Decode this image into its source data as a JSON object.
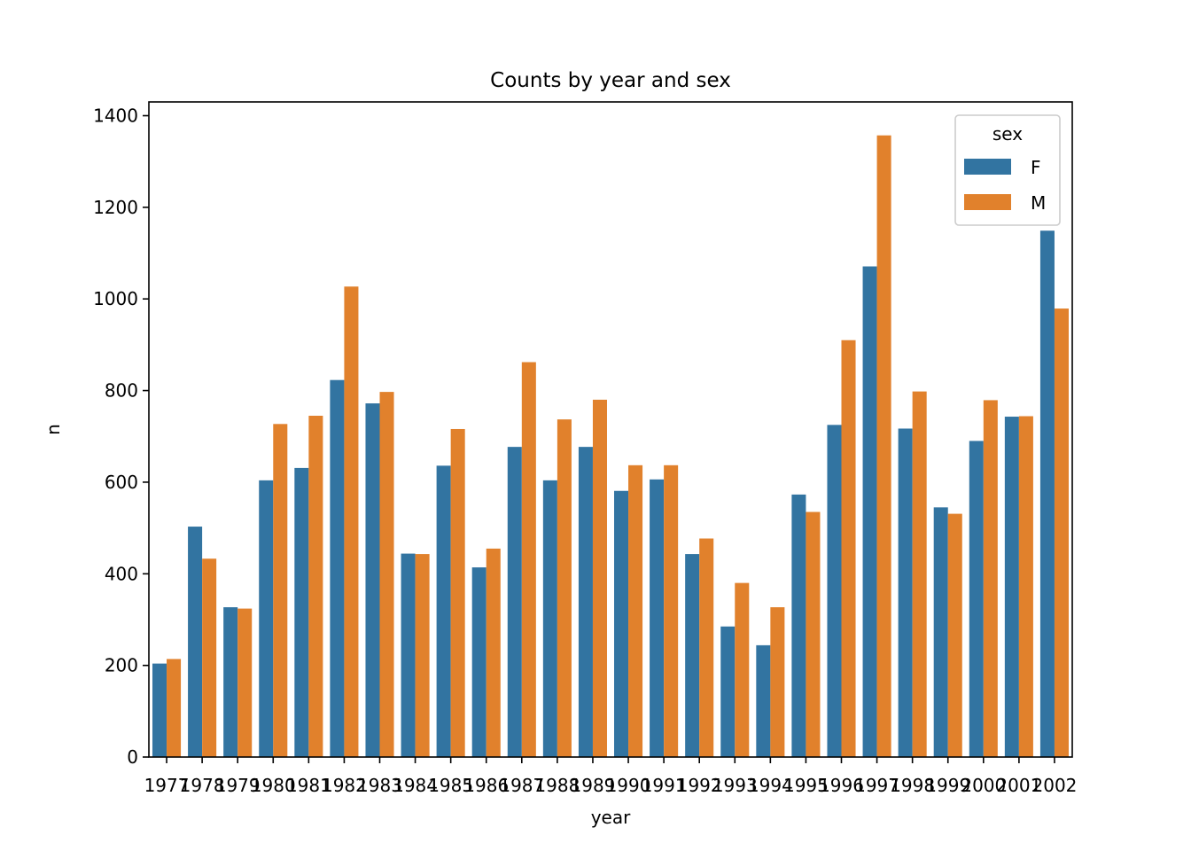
{
  "chart_data": {
    "type": "bar",
    "title": "Counts by year and sex",
    "xlabel": "year",
    "ylabel": "n",
    "ylim": [
      0,
      1430
    ],
    "yticks": [
      0,
      200,
      400,
      600,
      800,
      1000,
      1200,
      1400
    ],
    "grid": false,
    "legend": {
      "title": "sex",
      "position": "top-right"
    },
    "categories": [
      "1977",
      "1978",
      "1979",
      "1980",
      "1981",
      "1982",
      "1983",
      "1984",
      "1985",
      "1986",
      "1987",
      "1988",
      "1989",
      "1990",
      "1991",
      "1992",
      "1993",
      "1994",
      "1995",
      "1996",
      "1997",
      "1998",
      "1999",
      "2000",
      "2001",
      "2002"
    ],
    "series": [
      {
        "name": "F",
        "color": "#3274a1",
        "values": [
          204,
          503,
          327,
          604,
          631,
          823,
          772,
          444,
          636,
          414,
          677,
          604,
          677,
          581,
          606,
          443,
          285,
          244,
          573,
          725,
          1071,
          717,
          545,
          690,
          743,
          1149
        ]
      },
      {
        "name": "M",
        "color": "#e1812c",
        "values": [
          214,
          433,
          324,
          727,
          745,
          1027,
          797,
          443,
          716,
          455,
          862,
          737,
          780,
          637,
          637,
          477,
          380,
          327,
          535,
          910,
          1357,
          798,
          531,
          779,
          744,
          979
        ]
      }
    ]
  }
}
